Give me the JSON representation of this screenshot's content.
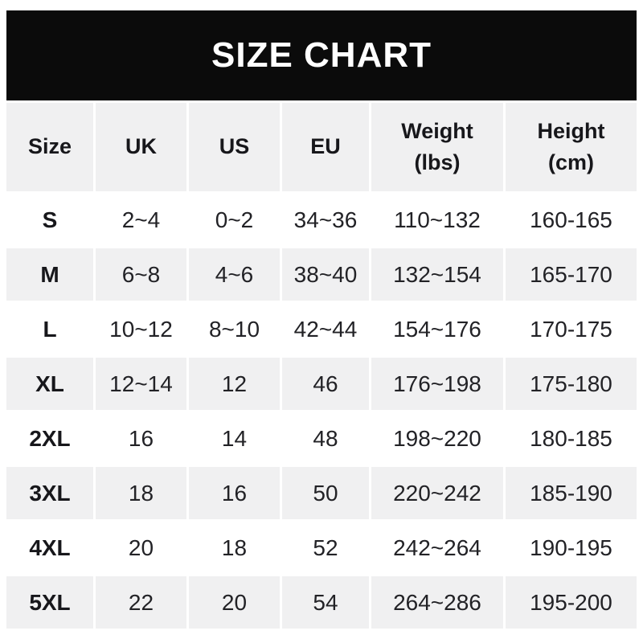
{
  "banner": {
    "title": "SIZE CHART"
  },
  "table": {
    "header_lines": [
      {
        "line1": "Size",
        "line2": ""
      },
      {
        "line1": "UK",
        "line2": ""
      },
      {
        "line1": "US",
        "line2": ""
      },
      {
        "line1": "EU",
        "line2": ""
      },
      {
        "line1": "Weight",
        "line2": "(lbs)"
      },
      {
        "line1": "Height",
        "line2": "(cm)"
      }
    ]
  },
  "chart_data": {
    "type": "table",
    "title": "SIZE CHART",
    "columns": [
      "Size",
      "UK",
      "US",
      "EU",
      "Weight (lbs)",
      "Height (cm)"
    ],
    "rows": [
      [
        "S",
        "2~4",
        "0~2",
        "34~36",
        "110~132",
        "160-165"
      ],
      [
        "M",
        "6~8",
        "4~6",
        "38~40",
        "132~154",
        "165-170"
      ],
      [
        "L",
        "10~12",
        "8~10",
        "42~44",
        "154~176",
        "170-175"
      ],
      [
        "XL",
        "12~14",
        "12",
        "46",
        "176~198",
        "175-180"
      ],
      [
        "2XL",
        "16",
        "14",
        "48",
        "198~220",
        "180-185"
      ],
      [
        "3XL",
        "18",
        "16",
        "50",
        "220~242",
        "185-190"
      ],
      [
        "4XL",
        "20",
        "18",
        "52",
        "242~264",
        "190-195"
      ],
      [
        "5XL",
        "22",
        "20",
        "54",
        "264~286",
        "195-200"
      ]
    ]
  },
  "colors": {
    "banner_bg": "#0b0b0b",
    "banner_text": "#ffffff",
    "row_alt_bg": "#f0f0f1",
    "row_bg": "#ffffff",
    "text": "#1c1c20"
  }
}
